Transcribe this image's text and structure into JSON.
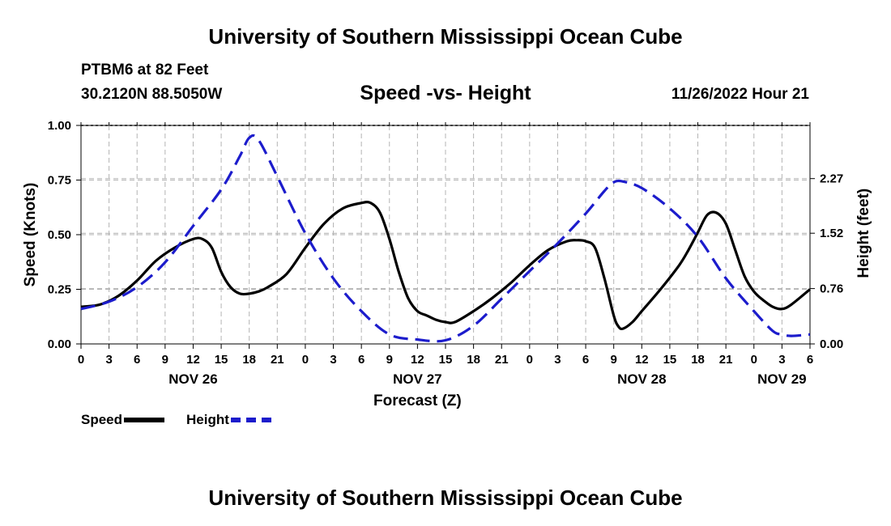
{
  "header": {
    "title": "University of Southern Mississippi Ocean Cube",
    "station": "PTBM6 at 82 Feet",
    "coords": "30.2120N  88.5050W",
    "timestamp": "11/26/2022 Hour 21"
  },
  "footer": {
    "title": "University of Southern Mississippi Ocean Cube"
  },
  "legend": {
    "speed_label": "Speed",
    "height_label": "Height"
  },
  "colors": {
    "speed": "#000000",
    "height": "#1c1ccc",
    "grid": "#b4b4b4"
  },
  "chart_data": {
    "type": "line",
    "title": "Speed -vs- Height",
    "xlabel": "Forecast (Z)",
    "ylabel": "Speed (Knots)",
    "y2label": "Height (feet)",
    "xlim": [
      0,
      78
    ],
    "ylim": [
      0,
      1
    ],
    "y2lim": [
      0,
      3.0
    ],
    "xticks": [
      0,
      3,
      6,
      9,
      12,
      15,
      18,
      21,
      24,
      27,
      30,
      33,
      36,
      39,
      42,
      45,
      48,
      51,
      54,
      57,
      60,
      63,
      66,
      69,
      72,
      75,
      78
    ],
    "xtick_labels": [
      "0",
      "3",
      "6",
      "9",
      "12",
      "15",
      "18",
      "21",
      "0",
      "3",
      "6",
      "9",
      "12",
      "15",
      "18",
      "21",
      "0",
      "3",
      "6",
      "9",
      "12",
      "15",
      "18",
      "21",
      "0",
      "3",
      "6"
    ],
    "day_labels": [
      {
        "text": "NOV 26",
        "x": 12
      },
      {
        "text": "NOV 27",
        "x": 36
      },
      {
        "text": "NOV 28",
        "x": 60
      },
      {
        "text": "NOV 29",
        "x": 75
      }
    ],
    "yticks": [
      0,
      0.25,
      0.5,
      0.75,
      1.0
    ],
    "ytick_labels": [
      "0.00",
      "0.25",
      "0.50",
      "0.75",
      "1.00"
    ],
    "y2ticks": [
      0,
      0.76,
      1.52,
      2.27
    ],
    "y2tick_labels": [
      "0.00",
      "0.76",
      "1.52",
      "2.27"
    ],
    "series": [
      {
        "name": "Speed",
        "axis": "left",
        "style": "solid",
        "x": [
          0,
          2,
          4,
          6,
          8,
          10,
          12,
          13,
          14,
          15,
          16,
          17,
          18,
          19,
          20,
          22,
          24,
          26,
          28,
          30,
          31,
          32,
          33,
          34,
          35,
          36,
          37,
          38,
          39,
          40,
          42,
          44,
          46,
          48,
          50,
          52,
          53,
          54,
          55,
          56,
          57,
          57.5,
          58,
          59,
          60,
          62,
          64,
          65,
          66,
          67,
          68,
          69,
          70,
          71,
          72,
          73,
          74,
          75,
          76,
          78
        ],
        "values": [
          0.17,
          0.18,
          0.22,
          0.29,
          0.38,
          0.44,
          0.48,
          0.48,
          0.44,
          0.33,
          0.26,
          0.23,
          0.23,
          0.24,
          0.26,
          0.32,
          0.44,
          0.55,
          0.62,
          0.645,
          0.645,
          0.6,
          0.48,
          0.33,
          0.21,
          0.15,
          0.13,
          0.11,
          0.1,
          0.1,
          0.15,
          0.21,
          0.28,
          0.36,
          0.43,
          0.47,
          0.475,
          0.47,
          0.44,
          0.3,
          0.13,
          0.08,
          0.07,
          0.1,
          0.15,
          0.25,
          0.36,
          0.43,
          0.51,
          0.59,
          0.6,
          0.55,
          0.43,
          0.31,
          0.24,
          0.2,
          0.17,
          0.16,
          0.18,
          0.25
        ]
      },
      {
        "name": "Height",
        "axis": "right",
        "style": "dashed",
        "x": [
          0,
          3,
          6,
          9,
          12,
          15,
          17,
          18,
          19,
          21,
          24,
          27,
          30,
          33,
          36,
          39,
          42,
          45,
          48,
          51,
          54,
          56,
          57,
          58,
          60,
          63,
          66,
          69,
          72,
          74,
          75,
          76,
          78
        ],
        "values": [
          0.48,
          0.58,
          0.78,
          1.12,
          1.62,
          2.12,
          2.58,
          2.83,
          2.8,
          2.3,
          1.52,
          0.9,
          0.45,
          0.13,
          0.06,
          0.05,
          0.25,
          0.62,
          1.0,
          1.38,
          1.79,
          2.1,
          2.22,
          2.23,
          2.14,
          1.86,
          1.47,
          0.9,
          0.45,
          0.18,
          0.13,
          0.11,
          0.13
        ]
      }
    ]
  }
}
